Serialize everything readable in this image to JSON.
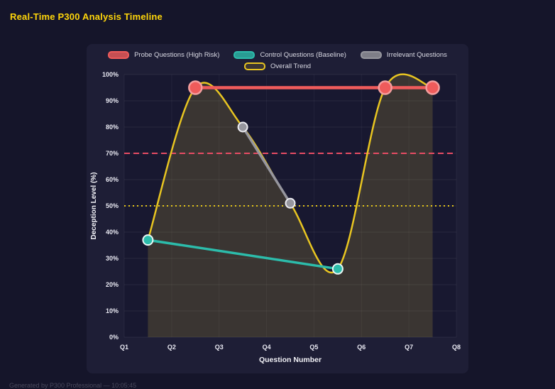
{
  "page": {
    "title": "Real-Time P300 Analysis Timeline",
    "footer": "Generated by P300 Professional — 10:05:45"
  },
  "colors": {
    "title_accent": "#ffd60a",
    "page_background": "#15152a",
    "panel_background": "#1e1e36"
  },
  "chart_data": {
    "type": "line",
    "xlabel": "Question Number",
    "ylabel": "Deception Level (%)",
    "x_ticks": [
      "Q1",
      "Q2",
      "Q3",
      "Q4",
      "Q5",
      "Q6",
      "Q7",
      "Q8"
    ],
    "y_ticks": [
      "0%",
      "10%",
      "20%",
      "30%",
      "40%",
      "50%",
      "60%",
      "70%",
      "80%",
      "90%",
      "100%"
    ],
    "xlim": [
      1,
      8
    ],
    "ylim": [
      0,
      100
    ],
    "grid": true,
    "legend_position": "top",
    "series": [
      {
        "name": "Probe Questions (High Risk)",
        "color": "#ef5b5b",
        "x": [
          2.5,
          6.5,
          7.5
        ],
        "values": [
          95,
          95,
          95
        ]
      },
      {
        "name": "Control Questions (Baseline)",
        "color": "#2cbcab",
        "x": [
          1.5,
          5.5
        ],
        "values": [
          37,
          26
        ]
      },
      {
        "name": "Irrelevant Questions",
        "color": "#96969e",
        "x": [
          3.5,
          4.5
        ],
        "values": [
          80,
          51
        ]
      },
      {
        "name": "Overall Trend",
        "color": "#e8c521",
        "smooth": true,
        "fill": true,
        "x": [
          1.5,
          2.5,
          3.5,
          4.5,
          5.5,
          6.5,
          7.5
        ],
        "values": [
          37,
          95,
          80,
          51,
          26,
          95,
          95
        ]
      }
    ],
    "thresholds": [
      {
        "label": "high-risk-threshold",
        "value": 70,
        "color": "#e84c64",
        "style": "dashed"
      },
      {
        "label": "baseline-threshold",
        "value": 50,
        "color": "#e6c619",
        "style": "dotted"
      }
    ]
  }
}
